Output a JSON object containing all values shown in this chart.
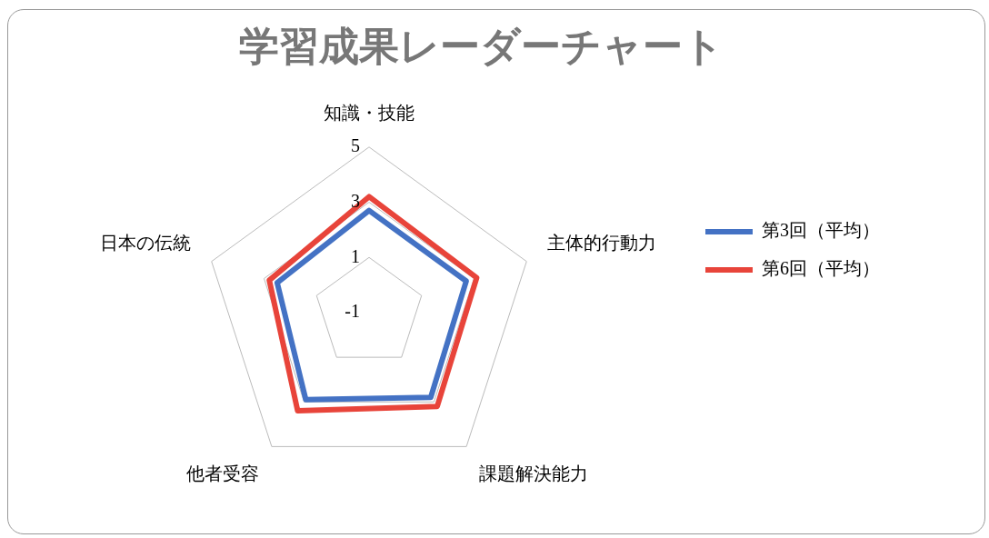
{
  "chart_data": {
    "type": "radar",
    "title": "学習成果レーダーチャート",
    "categories": [
      "知識・技能",
      "主体的行動力",
      "課題解決能力",
      "他者受容",
      "日本の伝統"
    ],
    "series": [
      {
        "name": "第3回（平均）",
        "color": "#4472c4",
        "values": [
          2.7,
          2.7,
          2.8,
          2.9,
          2.5
        ]
      },
      {
        "name": "第6回（平均）",
        "color": "#e8443a",
        "values": [
          3.2,
          3.1,
          3.2,
          3.4,
          2.8
        ]
      }
    ],
    "ylim": [
      -1,
      5
    ],
    "yticks": [
      -1,
      1,
      3,
      5
    ],
    "grid": true,
    "legend": "right",
    "marker": "none",
    "line_style": "solid"
  }
}
